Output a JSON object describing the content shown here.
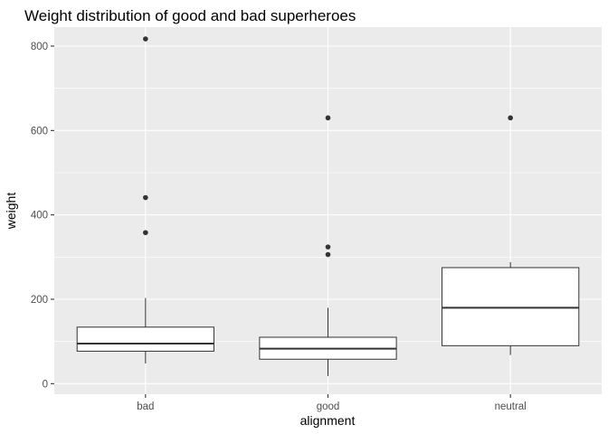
{
  "chart_data": {
    "type": "boxplot",
    "title": "Weight distribution of good and bad superheroes",
    "xlabel": "alignment",
    "ylabel": "weight",
    "ylim": [
      -25,
      845
    ],
    "yticks": [
      0,
      200,
      400,
      600,
      800
    ],
    "categories": [
      "bad",
      "good",
      "neutral"
    ],
    "boxes": [
      {
        "category": "bad",
        "whisker_low": 48,
        "q1": 77,
        "median": 95,
        "q3": 134,
        "whisker_high": 203,
        "outliers": [
          358,
          441,
          817
        ]
      },
      {
        "category": "good",
        "whisker_low": 18,
        "q1": 58,
        "median": 83,
        "q3": 110,
        "whisker_high": 180,
        "outliers": [
          306,
          324,
          630
        ]
      },
      {
        "category": "neutral",
        "whisker_low": 68,
        "q1": 90,
        "median": 180,
        "q3": 275,
        "whisker_high": 288,
        "outliers": [
          630
        ]
      }
    ],
    "grid": true,
    "legend": "none",
    "colors": {
      "panel": "#ebebeb",
      "grid": "#ffffff",
      "box_fill": "#ffffff",
      "box_stroke": "#333333",
      "outlier": "#333333",
      "tick_text": "#4d4d4d"
    }
  }
}
